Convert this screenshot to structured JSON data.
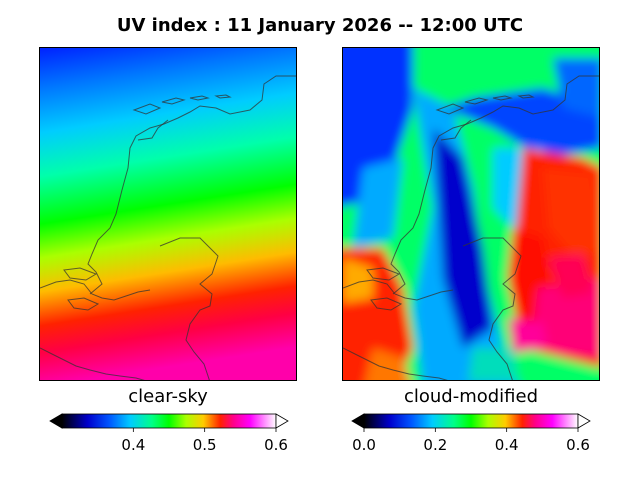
{
  "title": "UV index :  11 January 2026  --  12:00 UTC",
  "panels": [
    {
      "label": "clear-sky",
      "colorbar": {
        "min": 0.3,
        "max": 0.6,
        "ticks": [
          "0.4",
          "0.5",
          "0.6"
        ],
        "tick_values": [
          0.4,
          0.5,
          0.6
        ]
      }
    },
    {
      "label": "cloud-modified",
      "colorbar": {
        "min": 0.0,
        "max": 0.6,
        "ticks": [
          "0.0",
          "0.2",
          "0.4",
          "0.6"
        ],
        "tick_values": [
          0.0,
          0.2,
          0.4,
          0.6
        ]
      }
    }
  ],
  "colors": {
    "scale": [
      "#000000",
      "#0000cc",
      "#0055ff",
      "#00ccff",
      "#00ff88",
      "#00ff00",
      "#aaff00",
      "#ffcc00",
      "#ff4400",
      "#ff0000",
      "#ff0088",
      "#ff00ff",
      "#ffccff",
      "#ffffff"
    ]
  }
}
